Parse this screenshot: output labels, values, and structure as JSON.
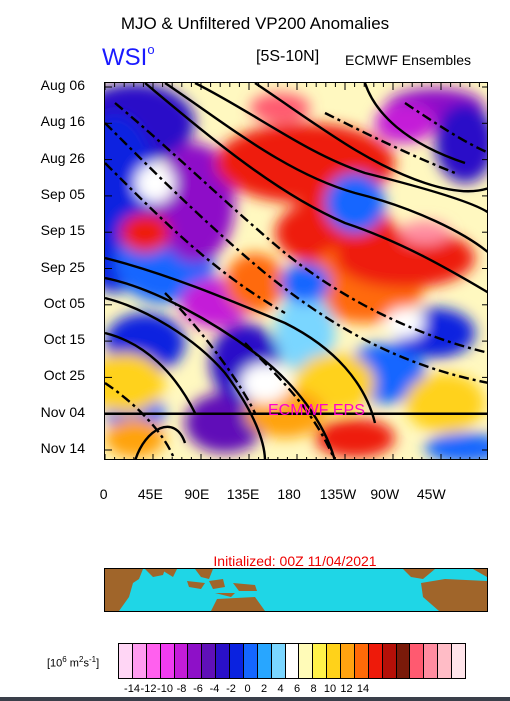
{
  "header": {
    "title": "MJO & Unfiltered VP200 Anomalies",
    "brand": "WSI",
    "brand_sup": "o",
    "region": "[5S-10N]",
    "source": "ECMWF Ensembles"
  },
  "chart_data": {
    "type": "heatmap",
    "title": "MJO & Unfiltered VP200 Anomalies",
    "y_tick_labels": [
      "Aug 06",
      "Aug 16",
      "Aug 26",
      "Sep 05",
      "Sep 15",
      "Sep 25",
      "Oct 05",
      "Oct 15",
      "Oct 25",
      "Nov 04",
      "Nov 14"
    ],
    "x_tick_labels": [
      "0",
      "45E",
      "90E",
      "135E",
      "180",
      "135W",
      "90W",
      "45W"
    ],
    "forecast_marker": {
      "date": "Nov 04",
      "label": "ECMWF EPS"
    },
    "colorbar": {
      "unit": "[10",
      "unit_sup1": "6",
      "unit_mid": " m",
      "unit_sup2": "2",
      "unit_s": "s",
      "unit_sup3": "-1",
      "unit_end": "]",
      "tick_labels": [
        "-14",
        "-12",
        "-10",
        "-8",
        "-6",
        "-4",
        "-2",
        "0",
        "2",
        "4",
        "6",
        "8",
        "10",
        "12",
        "14"
      ],
      "colors": [
        "#ffd6f5",
        "#ff9cf0",
        "#ff60ee",
        "#f03cf0",
        "#c41cd8",
        "#8e10c8",
        "#6010b8",
        "#2a10c8",
        "#0a22e0",
        "#1466ff",
        "#28a6ff",
        "#7ad6ff",
        "#ffffff",
        "#fffbb8",
        "#fff24a",
        "#ffd21a",
        "#ffa310",
        "#ff6a08",
        "#ee1a0a",
        "#b51008",
        "#7a1a0a",
        "#ff5a70",
        "#ff8ca0",
        "#ffbcc6",
        "#ffe4ea"
      ]
    }
  },
  "map": {
    "initialized": "Initialized: 00Z 11/04/2021"
  }
}
